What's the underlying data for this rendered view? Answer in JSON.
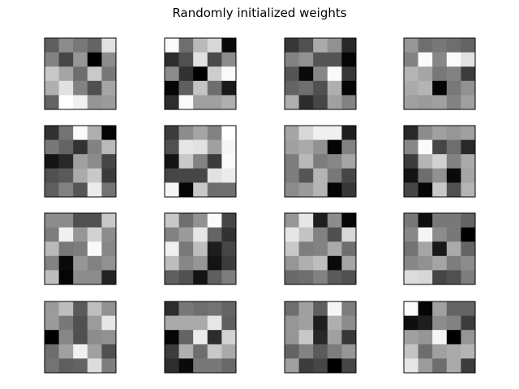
{
  "figure": {
    "title": "Randomly initialized weights"
  },
  "chart_data": {
    "type": "heatmap",
    "title": "Randomly initialized weights",
    "colormap": "gray",
    "grid": false,
    "ticks": false,
    "layout": {
      "rows": 4,
      "cols": 4
    },
    "value_range": [
      0,
      255
    ],
    "panels": [
      [
        [
          95,
          140,
          120,
          100,
          225
        ],
        [
          130,
          70,
          150,
          0,
          140
        ],
        [
          200,
          165,
          110,
          200,
          120
        ],
        [
          175,
          225,
          130,
          80,
          165
        ],
        [
          100,
          255,
          240,
          150,
          155
        ]
      ],
      [
        [
          250,
          110,
          185,
          215,
          10
        ],
        [
          45,
          80,
          225,
          75,
          140
        ],
        [
          140,
          50,
          0,
          205,
          250
        ],
        [
          5,
          95,
          195,
          110,
          25
        ],
        [
          45,
          250,
          160,
          160,
          175
        ]
      ],
      [
        [
          55,
          80,
          170,
          145,
          40
        ],
        [
          130,
          145,
          85,
          85,
          5
        ],
        [
          85,
          10,
          135,
          250,
          55
        ],
        [
          100,
          110,
          80,
          175,
          5
        ],
        [
          175,
          45,
          70,
          160,
          130
        ]
      ],
      [
        [
          150,
          110,
          120,
          110,
          100
        ],
        [
          130,
          250,
          135,
          250,
          225
        ],
        [
          180,
          165,
          120,
          130,
          60
        ],
        [
          170,
          180,
          5,
          120,
          145
        ],
        [
          160,
          155,
          160,
          130,
          160
        ]
      ],
      [
        [
          50,
          115,
          250,
          175,
          5
        ],
        [
          120,
          100,
          50,
          130,
          185
        ],
        [
          20,
          40,
          160,
          140,
          70
        ],
        [
          80,
          90,
          170,
          200,
          60
        ],
        [
          95,
          130,
          85,
          235,
          115
        ]
      ],
      [
        [
          60,
          140,
          165,
          130,
          255
        ],
        [
          80,
          230,
          225,
          160,
          245
        ],
        [
          20,
          200,
          130,
          60,
          250
        ],
        [
          70,
          70,
          70,
          225,
          235
        ],
        [
          245,
          5,
          200,
          110,
          110
        ]
      ],
      [
        [
          165,
          215,
          240,
          240,
          30
        ],
        [
          160,
          170,
          145,
          5,
          130
        ],
        [
          125,
          185,
          125,
          135,
          165
        ],
        [
          125,
          85,
          180,
          120,
          70
        ],
        [
          140,
          155,
          180,
          5,
          55
        ]
      ],
      [
        [
          40,
          140,
          160,
          150,
          160
        ],
        [
          135,
          250,
          70,
          110,
          40
        ],
        [
          60,
          180,
          210,
          130,
          170
        ],
        [
          20,
          110,
          145,
          10,
          165
        ],
        [
          70,
          5,
          200,
          80,
          180
        ]
      ],
      [
        [
          140,
          140,
          80,
          80,
          200
        ],
        [
          125,
          240,
          150,
          210,
          140
        ],
        [
          185,
          120,
          125,
          250,
          135
        ],
        [
          130,
          10,
          150,
          130,
          145
        ],
        [
          190,
          5,
          140,
          140,
          35
        ]
      ],
      [
        [
          200,
          110,
          145,
          250,
          70
        ],
        [
          130,
          155,
          230,
          100,
          50
        ],
        [
          240,
          120,
          190,
          30,
          70
        ],
        [
          190,
          135,
          150,
          20,
          60
        ],
        [
          95,
          80,
          20,
          95,
          125
        ]
      ],
      [
        [
          150,
          230,
          30,
          140,
          5
        ],
        [
          230,
          195,
          130,
          80,
          215
        ],
        [
          200,
          125,
          130,
          170,
          110
        ],
        [
          150,
          175,
          190,
          10,
          165
        ],
        [
          105,
          110,
          130,
          90,
          80
        ]
      ],
      [
        [
          120,
          15,
          120,
          120,
          100
        ],
        [
          135,
          245,
          140,
          120,
          0
        ],
        [
          115,
          165,
          25,
          170,
          100
        ],
        [
          135,
          145,
          165,
          125,
          140
        ],
        [
          220,
          215,
          70,
          80,
          125
        ]
      ],
      [
        [
          155,
          190,
          90,
          190,
          145
        ],
        [
          155,
          120,
          80,
          155,
          230
        ],
        [
          0,
          135,
          80,
          140,
          145
        ],
        [
          110,
          160,
          240,
          160,
          80
        ],
        [
          115,
          95,
          100,
          220,
          125
        ]
      ],
      [
        [
          45,
          120,
          110,
          115,
          100
        ],
        [
          170,
          170,
          170,
          230,
          95
        ],
        [
          5,
          100,
          235,
          45,
          210
        ],
        [
          60,
          175,
          110,
          200,
          170
        ],
        [
          45,
          10,
          120,
          120,
          105
        ]
      ],
      [
        [
          110,
          160,
          95,
          245,
          125
        ],
        [
          150,
          160,
          30,
          175,
          140
        ],
        [
          150,
          200,
          40,
          160,
          55
        ],
        [
          100,
          130,
          90,
          125,
          150
        ],
        [
          160,
          60,
          70,
          0,
          70
        ]
      ],
      [
        [
          250,
          5,
          160,
          100,
          100
        ],
        [
          15,
          30,
          140,
          130,
          60
        ],
        [
          160,
          150,
          245,
          0,
          150
        ],
        [
          195,
          110,
          160,
          170,
          180
        ],
        [
          230,
          155,
          110,
          170,
          60
        ]
      ]
    ]
  }
}
